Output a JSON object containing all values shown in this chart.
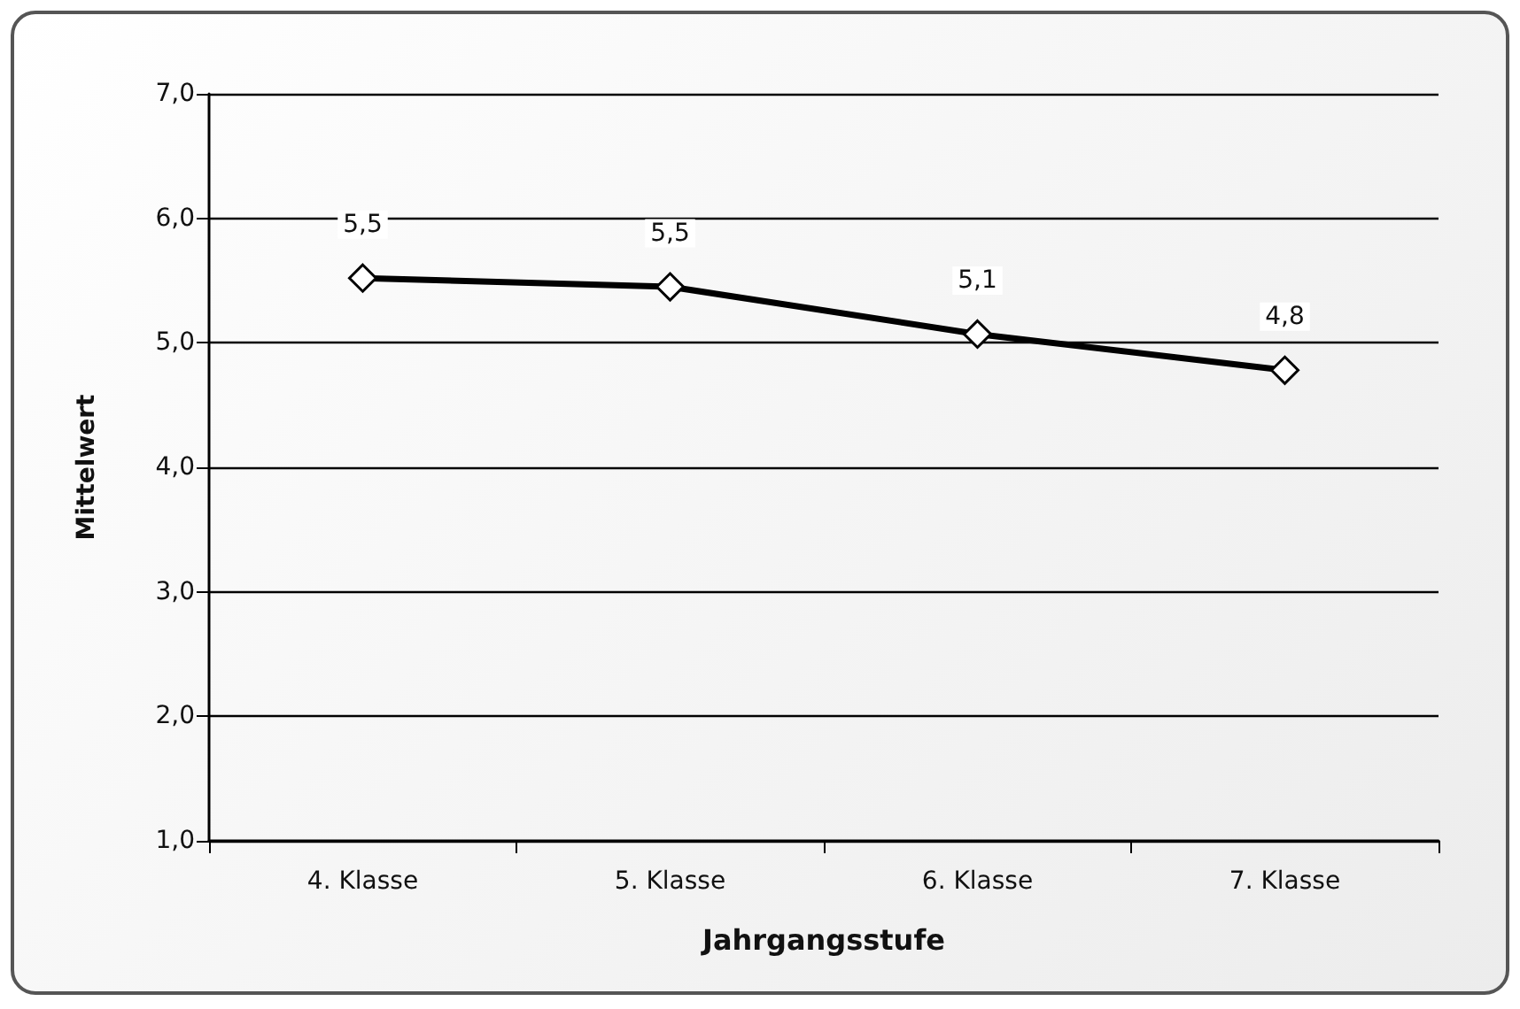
{
  "chart_data": {
    "type": "line",
    "xlabel": "Jahrgangsstufe",
    "ylabel": "Mittelwert",
    "categories": [
      "4. Klasse",
      "5. Klasse",
      "6. Klasse",
      "7. Klasse"
    ],
    "series": [
      {
        "color": "#000000",
        "values": [
          5.52,
          5.45,
          5.07,
          4.78
        ],
        "value_labels": [
          "5,5",
          "5,5",
          "5,1",
          "4,8"
        ]
      }
    ],
    "ylim": [
      1,
      7
    ],
    "yticks": [
      {
        "value": 1,
        "label": "1,0"
      },
      {
        "value": 2,
        "label": "2,0"
      },
      {
        "value": 3,
        "label": "3,0"
      },
      {
        "value": 4,
        "label": "4,0"
      },
      {
        "value": 5,
        "label": "5,0"
      },
      {
        "value": 6,
        "label": "6,0"
      },
      {
        "value": 7,
        "label": "7,0"
      }
    ],
    "grid": "y",
    "marker": "diamond",
    "line_style": "solid"
  }
}
